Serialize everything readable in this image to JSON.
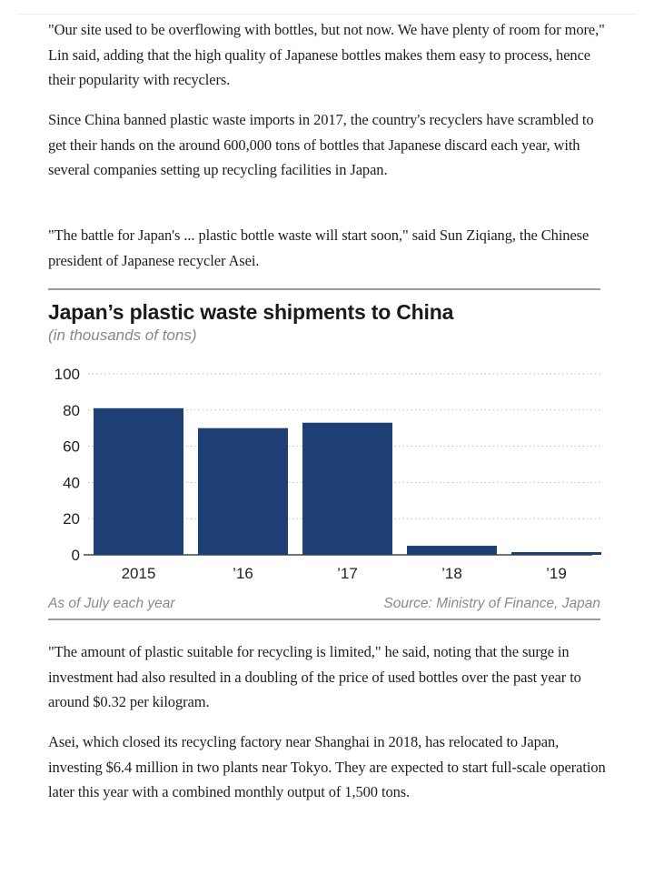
{
  "article": {
    "paragraphs_top": [
      "\"Our site used to be overflowing with bottles, but not now. We have plenty of room for more,\" Lin said, adding that the high quality of Japanese bottles makes them easy to process, hence their popularity with recyclers.",
      "Since China banned plastic waste imports in 2017, the country's recyclers have scrambled to get their hands on the around 600,000 tons of bottles that Japanese discard each year, with several companies setting up recycling facilities in Japan.",
      "\"The battle for Japan's ... plastic bottle waste will start soon,\" said Sun Ziqiang, the Chinese president of Japanese recycler Asei."
    ],
    "paragraphs_bottom": [
      "\"The amount of plastic suitable for recycling is limited,\" he said, noting that the surge in investment had also resulted in a doubling of the price of used bottles over the past year to around $0.32 per kilogram.",
      "Asei, which closed its recycling factory near Shanghai in 2018, has relocated to Japan, investing $6.4 million in two plants near Tokyo. They are expected to start full-scale operation later this year with a combined monthly output of 1,500 tons."
    ]
  },
  "chart_data": {
    "type": "bar",
    "title": "Japan’s plastic waste shipments to China",
    "subtitle": "(in thousands of tons)",
    "categories": [
      "2015",
      "’16",
      "’17",
      "’18",
      "’19"
    ],
    "values": [
      81,
      70,
      73,
      5,
      1.5
    ],
    "ylim": [
      0,
      100
    ],
    "yticks": [
      0,
      20,
      40,
      60,
      80,
      100
    ],
    "xlabel": "",
    "ylabel": "",
    "grid": true,
    "bar_color": "#1d3f73",
    "footnote": "As of July each year",
    "source": "Source: Ministry of Finance, Japan"
  }
}
